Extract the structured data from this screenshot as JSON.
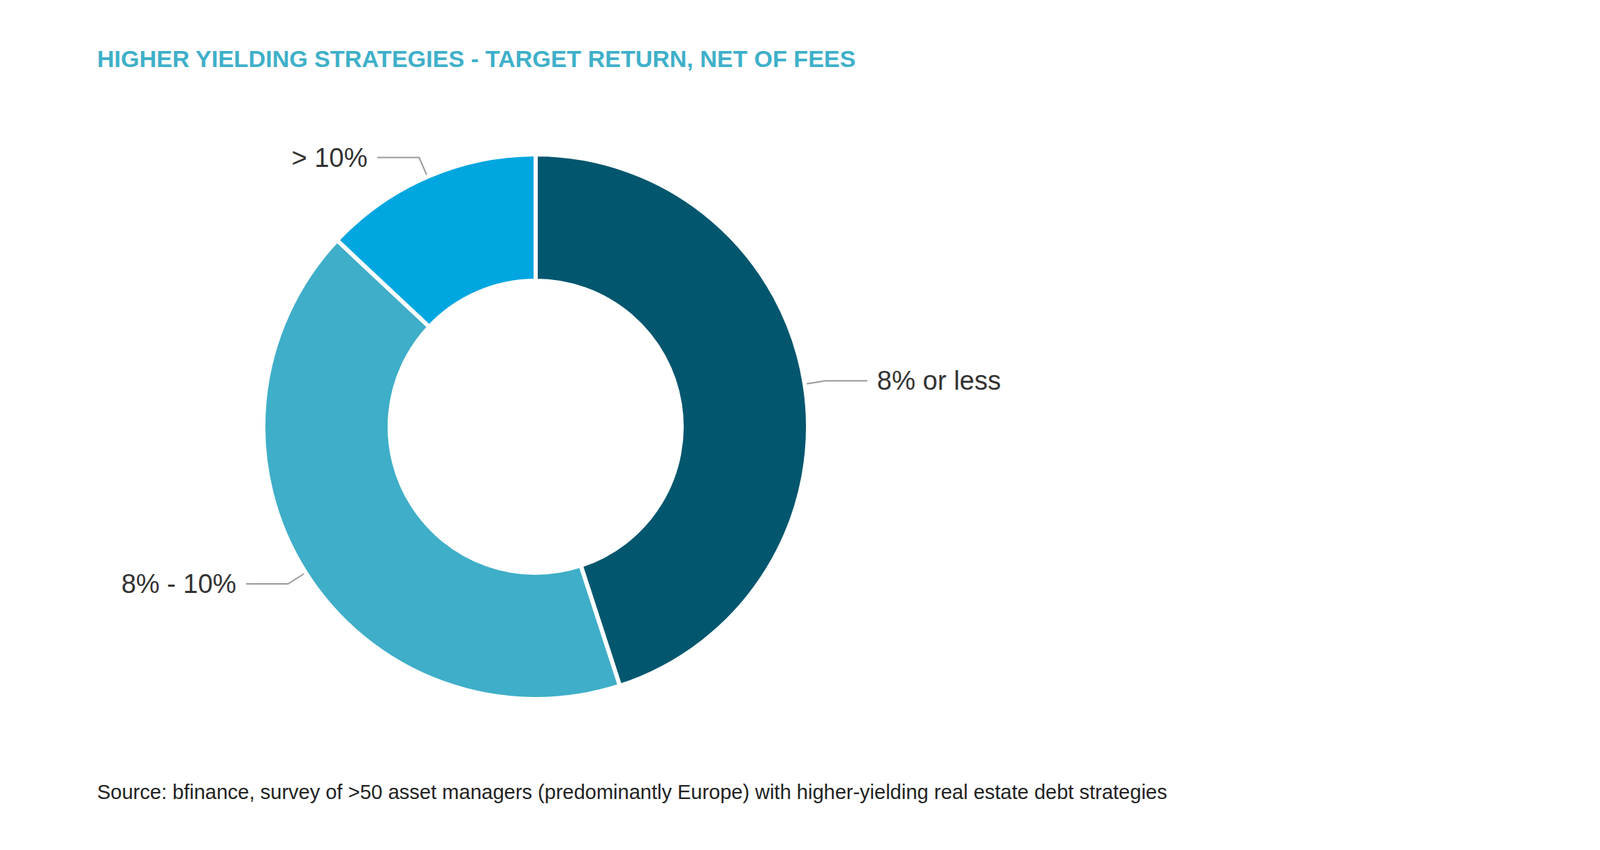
{
  "chart_data": {
    "type": "pie",
    "title": "HIGHER YIELDING STRATEGIES - TARGET RETURN, NET OF FEES",
    "source": "Source: bfinance, survey of >50 asset managers (predominantly Europe) with higher-yielding real estate debt strategies",
    "categories": [
      "8% or less",
      "8% - 10%",
      "> 10%"
    ],
    "values": [
      45,
      42,
      13
    ],
    "colors": [
      "#02566e",
      "#3faec8",
      "#00a6e0"
    ],
    "data_labels": false
  }
}
